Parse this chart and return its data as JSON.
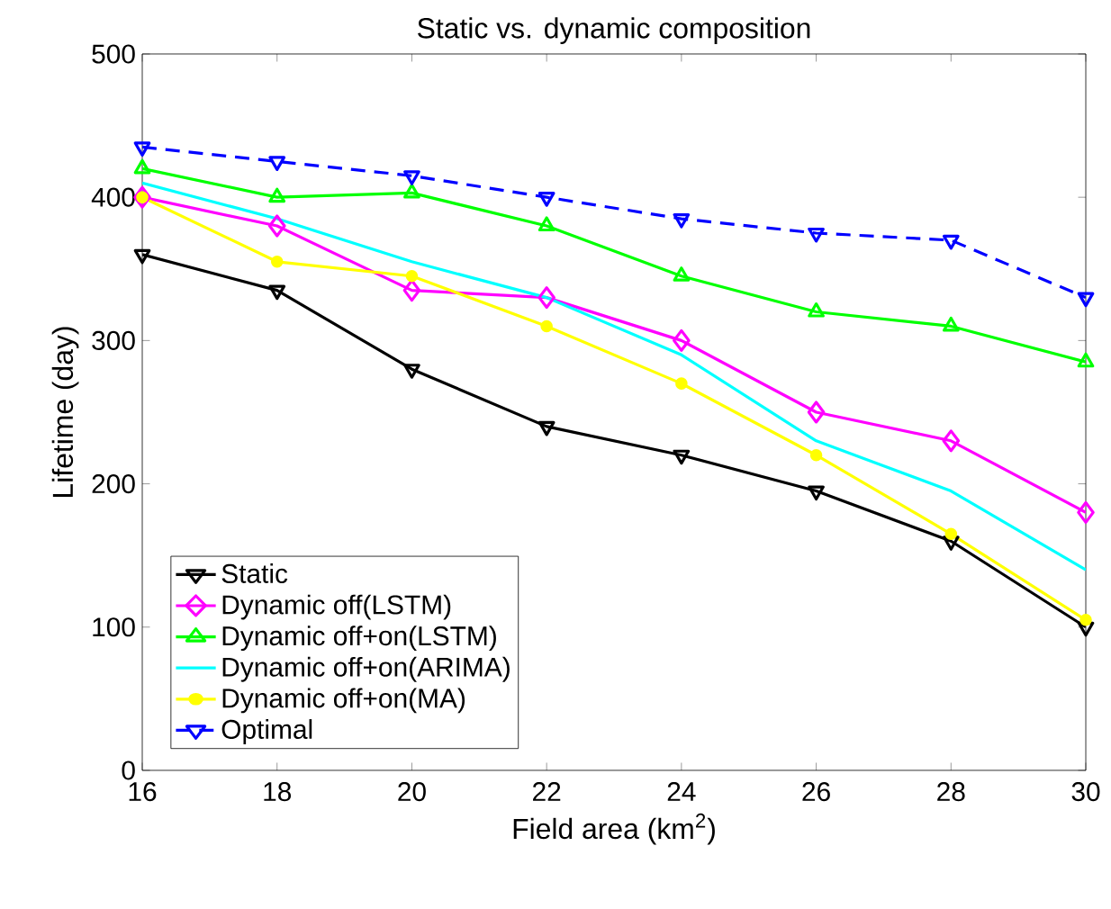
{
  "chart_data": {
    "type": "line",
    "title": "Static vs. dynamic composition",
    "xlabel": "Field area (km$^{2}$)",
    "ylabel": "Lifetime (day)",
    "x": [
      16,
      18,
      20,
      22,
      24,
      26,
      28,
      30
    ],
    "series": [
      {
        "name": "Static",
        "color": "#000000",
        "marker": "triangle-down",
        "values": [
          360,
          335,
          280,
          240,
          220,
          195,
          160,
          100
        ]
      },
      {
        "name": "Dynamic off(LSTM)",
        "color": "#ff00ff",
        "marker": "diamond",
        "values": [
          400,
          380,
          335,
          330,
          300,
          250,
          230,
          180
        ]
      },
      {
        "name": "Dynamic off+on(LSTM)",
        "color": "#00ff00",
        "marker": "triangle",
        "values": [
          420,
          400,
          403,
          380,
          345,
          320,
          310,
          285
        ]
      },
      {
        "name": "Dynamic off+on(ARIMA)",
        "color": "#00ffff",
        "marker": "none",
        "values": [
          410,
          385,
          355,
          330,
          290,
          230,
          195,
          140
        ]
      },
      {
        "name": "Dynamic off+on(MA)",
        "color": "#ffff00",
        "marker": "circle",
        "values": [
          400,
          355,
          345,
          310,
          270,
          220,
          165,
          105
        ]
      },
      {
        "name": "Optimal",
        "color": "#0000ff",
        "marker": "triangle-down",
        "line_style": "dashed",
        "values": [
          435,
          425,
          415,
          400,
          385,
          375,
          370,
          330
        ]
      }
    ],
    "xlim": [
      16,
      30
    ],
    "xticks": [
      16,
      18,
      20,
      22,
      24,
      26,
      28,
      30
    ],
    "ylim": [
      0,
      500
    ],
    "yticks": [
      0,
      100,
      200,
      300,
      400,
      500
    ],
    "grid": false,
    "legend": "bottom left"
  }
}
